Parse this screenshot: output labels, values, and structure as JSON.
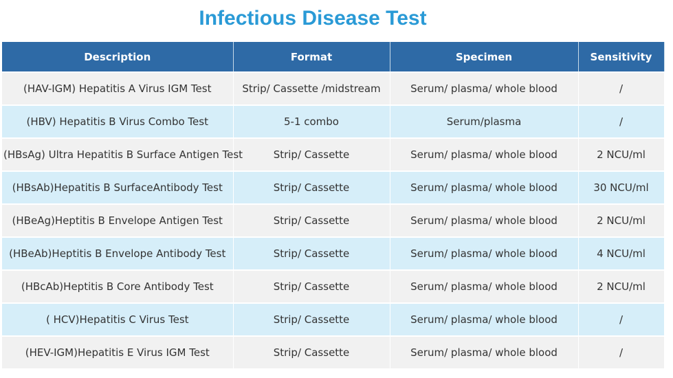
{
  "header": {
    "title": "Infectious Disease Test"
  },
  "table": {
    "columns": [
      "Description",
      "Format",
      "Specimen",
      "Sensitivity"
    ],
    "rows": [
      [
        "(HAV-IGM) Hepatitis A Virus IGM Test",
        "Strip/ Cassette /midstream",
        "Serum/ plasma/ whole blood",
        "/"
      ],
      [
        "(HBV) Hepatitis B Virus Combo Test",
        "5-1 combo",
        "Serum/plasma",
        "/"
      ],
      [
        "(HBsAg) Ultra Hepatitis B Surface Antigen Test",
        "Strip/ Cassette",
        "Serum/ plasma/ whole blood",
        "2 NCU/ml"
      ],
      [
        "(HBsAb)Hepatitis B SurfaceAntibody Test",
        "Strip/ Cassette",
        "Serum/ plasma/ whole blood",
        "30 NCU/ml"
      ],
      [
        "(HBeAg)Heptitis B Envelope Antigen Test",
        "Strip/ Cassette",
        "Serum/ plasma/ whole blood",
        "2 NCU/ml"
      ],
      [
        "(HBeAb)Heptitis B Envelope Antibody Test",
        "Strip/ Cassette",
        "Serum/ plasma/ whole blood",
        "4 NCU/ml"
      ],
      [
        "(HBcAb)Heptitis B Core Antibody Test",
        "Strip/ Cassette",
        "Serum/ plasma/ whole blood",
        "2 NCU/ml"
      ],
      [
        "( HCV)Hepatitis C Virus Test",
        "Strip/ Cassette",
        "Serum/ plasma/ whole blood",
        "/"
      ],
      [
        "(HEV-IGM)Hepatitis E Virus IGM Test",
        "Strip/ Cassette",
        "Serum/ plasma/ whole blood",
        "/"
      ]
    ]
  }
}
